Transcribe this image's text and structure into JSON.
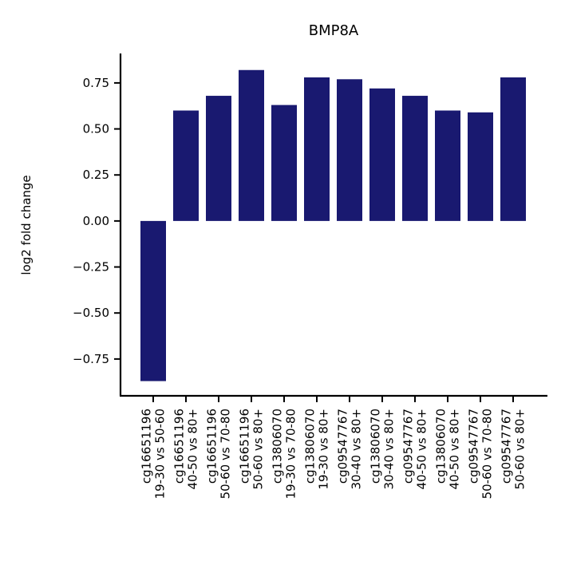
{
  "chart_data": {
    "type": "bar",
    "title": "BMP8A",
    "xlabel": "",
    "ylabel": "log2 fold change",
    "ylim": [
      -0.95,
      0.91
    ],
    "yticks": [
      0.75,
      0.5,
      0.25,
      0.0,
      -0.25,
      -0.5,
      -0.75
    ],
    "ytick_labels": [
      "0.75",
      "0.50",
      "0.25",
      "0.00",
      "−0.25",
      "−0.50",
      "−0.75"
    ],
    "bar_color": "#191970",
    "grid": false,
    "categories": [
      [
        "cg16651196",
        "19-30 vs 50-60"
      ],
      [
        "cg16651196",
        "40-50 vs 80+"
      ],
      [
        "cg16651196",
        "50-60 vs 70-80"
      ],
      [
        "cg16651196",
        "50-60 vs 80+"
      ],
      [
        "cg13806070",
        "19-30 vs 70-80"
      ],
      [
        "cg13806070",
        "19-30 vs 80+"
      ],
      [
        "cg09547767",
        "30-40 vs 80+"
      ],
      [
        "cg13806070",
        "30-40 vs 80+"
      ],
      [
        "cg09547767",
        "40-50 vs 80+"
      ],
      [
        "cg13806070",
        "40-50 vs 80+"
      ],
      [
        "cg09547767",
        "50-60 vs 70-80"
      ],
      [
        "cg09547767",
        "50-60 vs 80+"
      ]
    ],
    "values": [
      -0.87,
      0.6,
      0.68,
      0.82,
      0.63,
      0.78,
      0.77,
      0.72,
      0.68,
      0.6,
      0.59,
      0.78
    ]
  }
}
